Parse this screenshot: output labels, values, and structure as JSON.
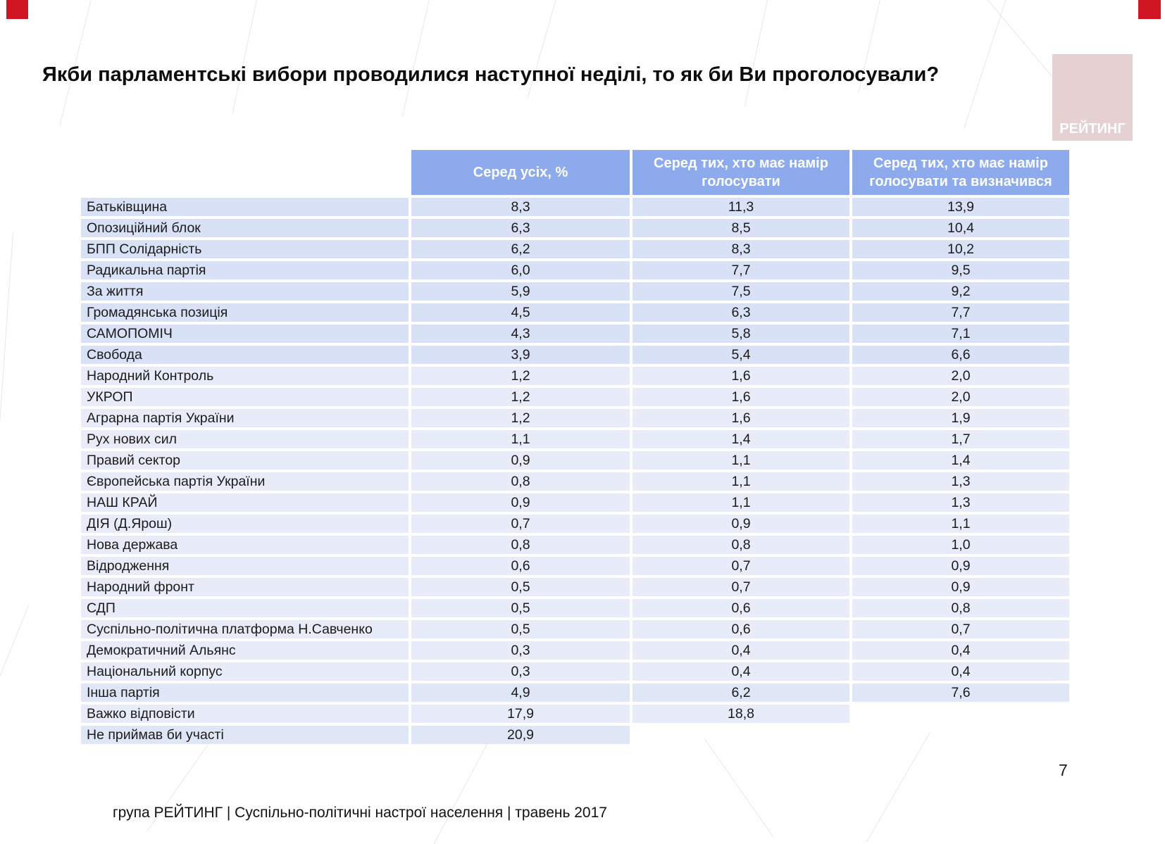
{
  "slide": {
    "title": "Якби парламентські вибори проводилися наступної неділі, то як би Ви проголосували?",
    "page_number": "7",
    "footer_text": "група РЕЙТИНГ  | Суспільно-політичні настрої населення  |  травень 2017",
    "logo_text": "РЕЙТИНГ",
    "colors": {
      "accent_red": "#d01622",
      "logo_pink": "#e5d1d1",
      "header_blue": "#8caaec",
      "row_dark": "#d8e1f5",
      "row_light": "#e8ecf8",
      "row_medium": "#dfe6f5"
    }
  },
  "chart_data": {
    "type": "table",
    "columns": [
      "",
      "Серед усіх, %",
      "Серед тих, хто має намір голосувати",
      "Серед тих, хто має намір голосувати та визначився"
    ],
    "rows": [
      {
        "label": "Батьківщина",
        "values": [
          "8,3",
          "11,3",
          "13,9"
        ],
        "shade": "dark"
      },
      {
        "label": "Опозиційний блок",
        "values": [
          "6,3",
          "8,5",
          "10,4"
        ],
        "shade": "dark"
      },
      {
        "label": "БПП Солідарність",
        "values": [
          "6,2",
          "8,3",
          "10,2"
        ],
        "shade": "dark"
      },
      {
        "label": "Радикальна партія",
        "values": [
          "6,0",
          "7,7",
          "9,5"
        ],
        "shade": "dark"
      },
      {
        "label": "За життя",
        "values": [
          "5,9",
          "7,5",
          "9,2"
        ],
        "shade": "dark"
      },
      {
        "label": "Громадянська позиція",
        "values": [
          "4,5",
          "6,3",
          "7,7"
        ],
        "shade": "dark"
      },
      {
        "label": "САМОПОМІЧ",
        "values": [
          "4,3",
          "5,8",
          "7,1"
        ],
        "shade": "dark"
      },
      {
        "label": "Свобода",
        "values": [
          "3,9",
          "5,4",
          "6,6"
        ],
        "shade": "dark"
      },
      {
        "label": "Народний Контроль",
        "values": [
          "1,2",
          "1,6",
          "2,0"
        ],
        "shade": "light"
      },
      {
        "label": "УКРОП",
        "values": [
          "1,2",
          "1,6",
          "2,0"
        ],
        "shade": "light"
      },
      {
        "label": "Аграрна партія України",
        "values": [
          "1,2",
          "1,6",
          "1,9"
        ],
        "shade": "light"
      },
      {
        "label": "Рух нових сил",
        "values": [
          "1,1",
          "1,4",
          "1,7"
        ],
        "shade": "light"
      },
      {
        "label": "Правий сектор",
        "values": [
          "0,9",
          "1,1",
          "1,4"
        ],
        "shade": "light"
      },
      {
        "label": "Європейська партія України",
        "values": [
          "0,8",
          "1,1",
          "1,3"
        ],
        "shade": "light"
      },
      {
        "label": "НАШ КРАЙ",
        "values": [
          "0,9",
          "1,1",
          "1,3"
        ],
        "shade": "light"
      },
      {
        "label": "ДІЯ (Д.Ярош)",
        "values": [
          "0,7",
          "0,9",
          "1,1"
        ],
        "shade": "light"
      },
      {
        "label": "Нова держава",
        "values": [
          "0,8",
          "0,8",
          "1,0"
        ],
        "shade": "light"
      },
      {
        "label": "Відродження",
        "values": [
          "0,6",
          "0,7",
          "0,9"
        ],
        "shade": "light"
      },
      {
        "label": "Народний фронт",
        "values": [
          "0,5",
          "0,7",
          "0,9"
        ],
        "shade": "light"
      },
      {
        "label": "СДП",
        "values": [
          "0,5",
          "0,6",
          "0,8"
        ],
        "shade": "light"
      },
      {
        "label": "Суспільно-політична платформа Н.Савченко",
        "values": [
          "0,5",
          "0,6",
          "0,7"
        ],
        "shade": "light"
      },
      {
        "label": "Демократичний Альянс",
        "values": [
          "0,3",
          "0,4",
          "0,4"
        ],
        "shade": "light"
      },
      {
        "label": "Національний корпус",
        "values": [
          "0,3",
          "0,4",
          "0,4"
        ],
        "shade": "light"
      },
      {
        "label": "Інша партія",
        "values": [
          "4,9",
          "6,2",
          "7,6"
        ],
        "shade": "medium"
      },
      {
        "label": "Важко відповісти",
        "values": [
          "17,9",
          "18,8",
          null
        ],
        "shade": "light"
      },
      {
        "label": "Не приймав би участі",
        "values": [
          "20,9",
          null,
          null
        ],
        "shade": "medium"
      }
    ]
  }
}
